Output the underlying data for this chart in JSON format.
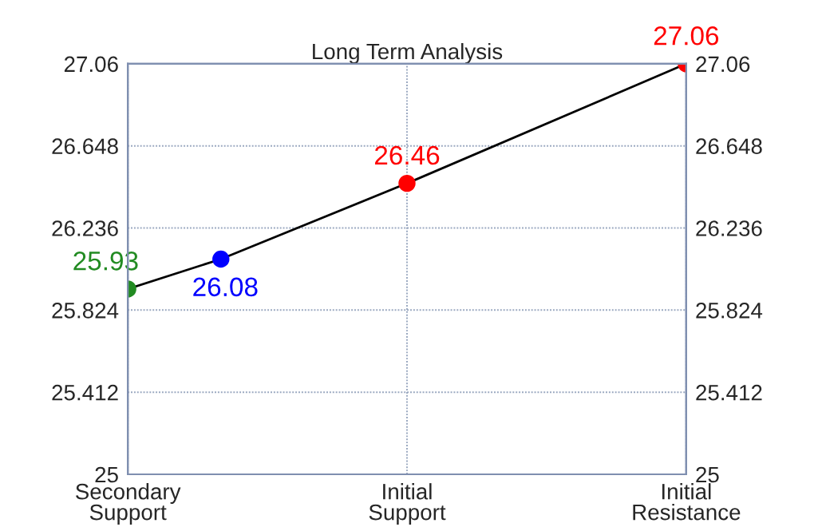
{
  "chart_data": {
    "type": "line",
    "title": "Long Term Analysis",
    "categories": [
      "Secondary\nSupport",
      null,
      null,
      "Initial\nSupport",
      null,
      null,
      "Initial\nResistance"
    ],
    "ylim": [
      25,
      27.06
    ],
    "yticks": [
      25,
      25.412,
      25.824,
      26.236,
      26.648,
      27.06
    ],
    "y2lim": [
      25,
      27.06
    ],
    "y2ticks": [
      25,
      25.412,
      25.824,
      26.236,
      26.648,
      27.06
    ],
    "grid": true,
    "data_labels": true,
    "marker": "circle",
    "series": [
      {
        "color": "#000000",
        "values": [
          25.93,
          26.08,
          null,
          26.46,
          null,
          null,
          27.06
        ],
        "colors": [
          "#228b22",
          "#0000ff",
          null,
          "#ff0000",
          null,
          null,
          "#ff0000"
        ]
      }
    ]
  }
}
